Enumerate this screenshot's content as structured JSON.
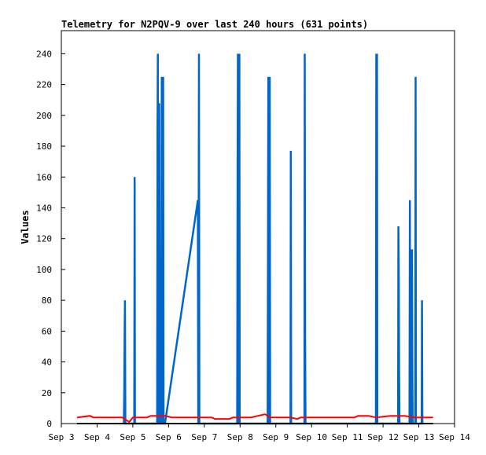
{
  "chart_data": {
    "type": "line",
    "title": "Telemetry for N2PQV-9 over last 240 hours (631 points)",
    "xlabel": "",
    "ylabel": "Values",
    "x_ticks": [
      "Sep 3",
      "Sep 4",
      "Sep 5",
      "Sep 6",
      "Sep 7",
      "Sep 8",
      "Sep 9",
      "Sep 10",
      "Sep 11",
      "Sep 12",
      "Sep 13",
      "Sep 14"
    ],
    "y_ticks": [
      0,
      20,
      40,
      60,
      80,
      100,
      120,
      140,
      160,
      180,
      200,
      220,
      240
    ],
    "xlim": [
      3,
      14
    ],
    "ylim": [
      0,
      255
    ],
    "grid": false,
    "colors": {
      "blue": "#0066cc",
      "red": "#ff0000",
      "black": "#000000"
    },
    "series": [
      {
        "color": "#0066cc",
        "points": [
          [
            4.75,
            0
          ],
          [
            4.76,
            20
          ],
          [
            4.77,
            60
          ],
          [
            4.78,
            80
          ],
          [
            4.79,
            0
          ],
          [
            5.04,
            0
          ],
          [
            5.05,
            160
          ],
          [
            5.06,
            0
          ],
          [
            5.68,
            0
          ],
          [
            5.69,
            192
          ],
          [
            5.7,
            240
          ],
          [
            5.71,
            0
          ],
          [
            5.72,
            208
          ],
          [
            5.73,
            0
          ],
          [
            5.74,
            208
          ],
          [
            5.75,
            100
          ],
          [
            5.76,
            0
          ],
          [
            5.8,
            0
          ],
          [
            5.81,
            225
          ],
          [
            5.82,
            0
          ],
          [
            5.83,
            225
          ],
          [
            5.84,
            60
          ],
          [
            5.85,
            225
          ],
          [
            5.86,
            0
          ],
          [
            5.9,
            0
          ],
          [
            6.82,
            145
          ],
          [
            6.83,
            0
          ],
          [
            6.84,
            96
          ],
          [
            6.85,
            240
          ],
          [
            6.86,
            0
          ],
          [
            7.92,
            0
          ],
          [
            7.93,
            160
          ],
          [
            7.94,
            240
          ],
          [
            7.95,
            0
          ],
          [
            7.96,
            240
          ],
          [
            7.97,
            90
          ],
          [
            7.98,
            240
          ],
          [
            7.99,
            0
          ],
          [
            8.77,
            0
          ],
          [
            8.78,
            96
          ],
          [
            8.79,
            225
          ],
          [
            8.8,
            0
          ],
          [
            8.81,
            225
          ],
          [
            8.82,
            0
          ],
          [
            8.83,
            225
          ],
          [
            8.84,
            0
          ],
          [
            9.41,
            0
          ],
          [
            9.42,
            177
          ],
          [
            9.43,
            0
          ],
          [
            9.8,
            0
          ],
          [
            9.81,
            240
          ],
          [
            9.82,
            56
          ],
          [
            9.83,
            0
          ],
          [
            11.8,
            0
          ],
          [
            11.81,
            240
          ],
          [
            11.82,
            0
          ],
          [
            11.83,
            240
          ],
          [
            11.84,
            0
          ],
          [
            12.42,
            0
          ],
          [
            12.43,
            128
          ],
          [
            12.44,
            96
          ],
          [
            12.45,
            32
          ],
          [
            12.46,
            0
          ],
          [
            12.74,
            0
          ],
          [
            12.75,
            145
          ],
          [
            12.76,
            0
          ],
          [
            12.77,
            113
          ],
          [
            12.78,
            96
          ],
          [
            12.79,
            0
          ],
          [
            12.8,
            0
          ],
          [
            12.81,
            113
          ],
          [
            12.82,
            32
          ],
          [
            12.83,
            0
          ],
          [
            12.9,
            0
          ],
          [
            12.91,
            225
          ],
          [
            12.92,
            0
          ],
          [
            13.08,
            0
          ],
          [
            13.09,
            80
          ],
          [
            13.1,
            0
          ]
        ]
      },
      {
        "color": "#ff0000",
        "points": [
          [
            3.44,
            4
          ],
          [
            3.8,
            5
          ],
          [
            3.9,
            4
          ],
          [
            4.4,
            4
          ],
          [
            4.7,
            4
          ],
          [
            4.9,
            1
          ],
          [
            5.0,
            4
          ],
          [
            5.4,
            4
          ],
          [
            5.5,
            5
          ],
          [
            5.9,
            5
          ],
          [
            6.1,
            4
          ],
          [
            6.5,
            4
          ],
          [
            6.9,
            4
          ],
          [
            7.2,
            4
          ],
          [
            7.3,
            3
          ],
          [
            7.6,
            3
          ],
          [
            7.7,
            3
          ],
          [
            7.8,
            4
          ],
          [
            8.0,
            4
          ],
          [
            8.3,
            4
          ],
          [
            8.5,
            5
          ],
          [
            8.7,
            6
          ],
          [
            8.85,
            4
          ],
          [
            9.2,
            4
          ],
          [
            9.4,
            4
          ],
          [
            9.6,
            3
          ],
          [
            9.7,
            4
          ],
          [
            10.0,
            4
          ],
          [
            10.6,
            4
          ],
          [
            11.2,
            4
          ],
          [
            11.3,
            5
          ],
          [
            11.6,
            5
          ],
          [
            11.8,
            4
          ],
          [
            12.2,
            5
          ],
          [
            12.6,
            5
          ],
          [
            12.9,
            4
          ],
          [
            13.2,
            4
          ],
          [
            13.4,
            4
          ]
        ]
      },
      {
        "color": "#000000",
        "points": [
          [
            3.44,
            0
          ],
          [
            13.4,
            0
          ]
        ]
      }
    ]
  }
}
